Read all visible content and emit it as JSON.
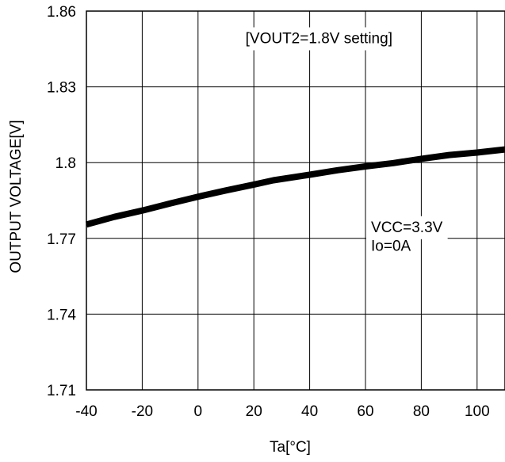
{
  "chart_data": {
    "type": "line",
    "title": "",
    "xlabel": "Ta[°C]",
    "ylabel": "OUTPUT VOLTAGE[V]",
    "xlim": [
      -40,
      110
    ],
    "ylim": [
      1.71,
      1.86
    ],
    "xticks": [
      -40,
      -20,
      0,
      20,
      40,
      60,
      80,
      100
    ],
    "xtick_labels": [
      "-40",
      "-20",
      "0",
      "20",
      "40",
      "60",
      "80",
      "100"
    ],
    "yticks": [
      1.71,
      1.74,
      1.77,
      1.8,
      1.83,
      1.86
    ],
    "ytick_labels": [
      "1.71",
      "1.74",
      "1.77",
      "1.8",
      "1.83",
      "1.86"
    ],
    "grid": true,
    "series": [
      {
        "name": "",
        "x": [
          -40,
          -30,
          -20,
          -10,
          0,
          10,
          20,
          27,
          40,
          50,
          60,
          70,
          80,
          90,
          100,
          110
        ],
        "y": [
          1.7755,
          1.7785,
          1.781,
          1.7838,
          1.7865,
          1.789,
          1.7913,
          1.793,
          1.7952,
          1.797,
          1.7985,
          1.7998,
          1.8015,
          1.803,
          1.804,
          1.8052
        ]
      }
    ],
    "annotations": [
      {
        "text": "[VOUT2=1.8V setting]",
        "x": 17,
        "y": 1.8473
      },
      {
        "text": "VCC=3.3V",
        "x": 62,
        "y": 1.7725
      },
      {
        "text": "Io=0A",
        "x": 62,
        "y": 1.765
      }
    ]
  }
}
